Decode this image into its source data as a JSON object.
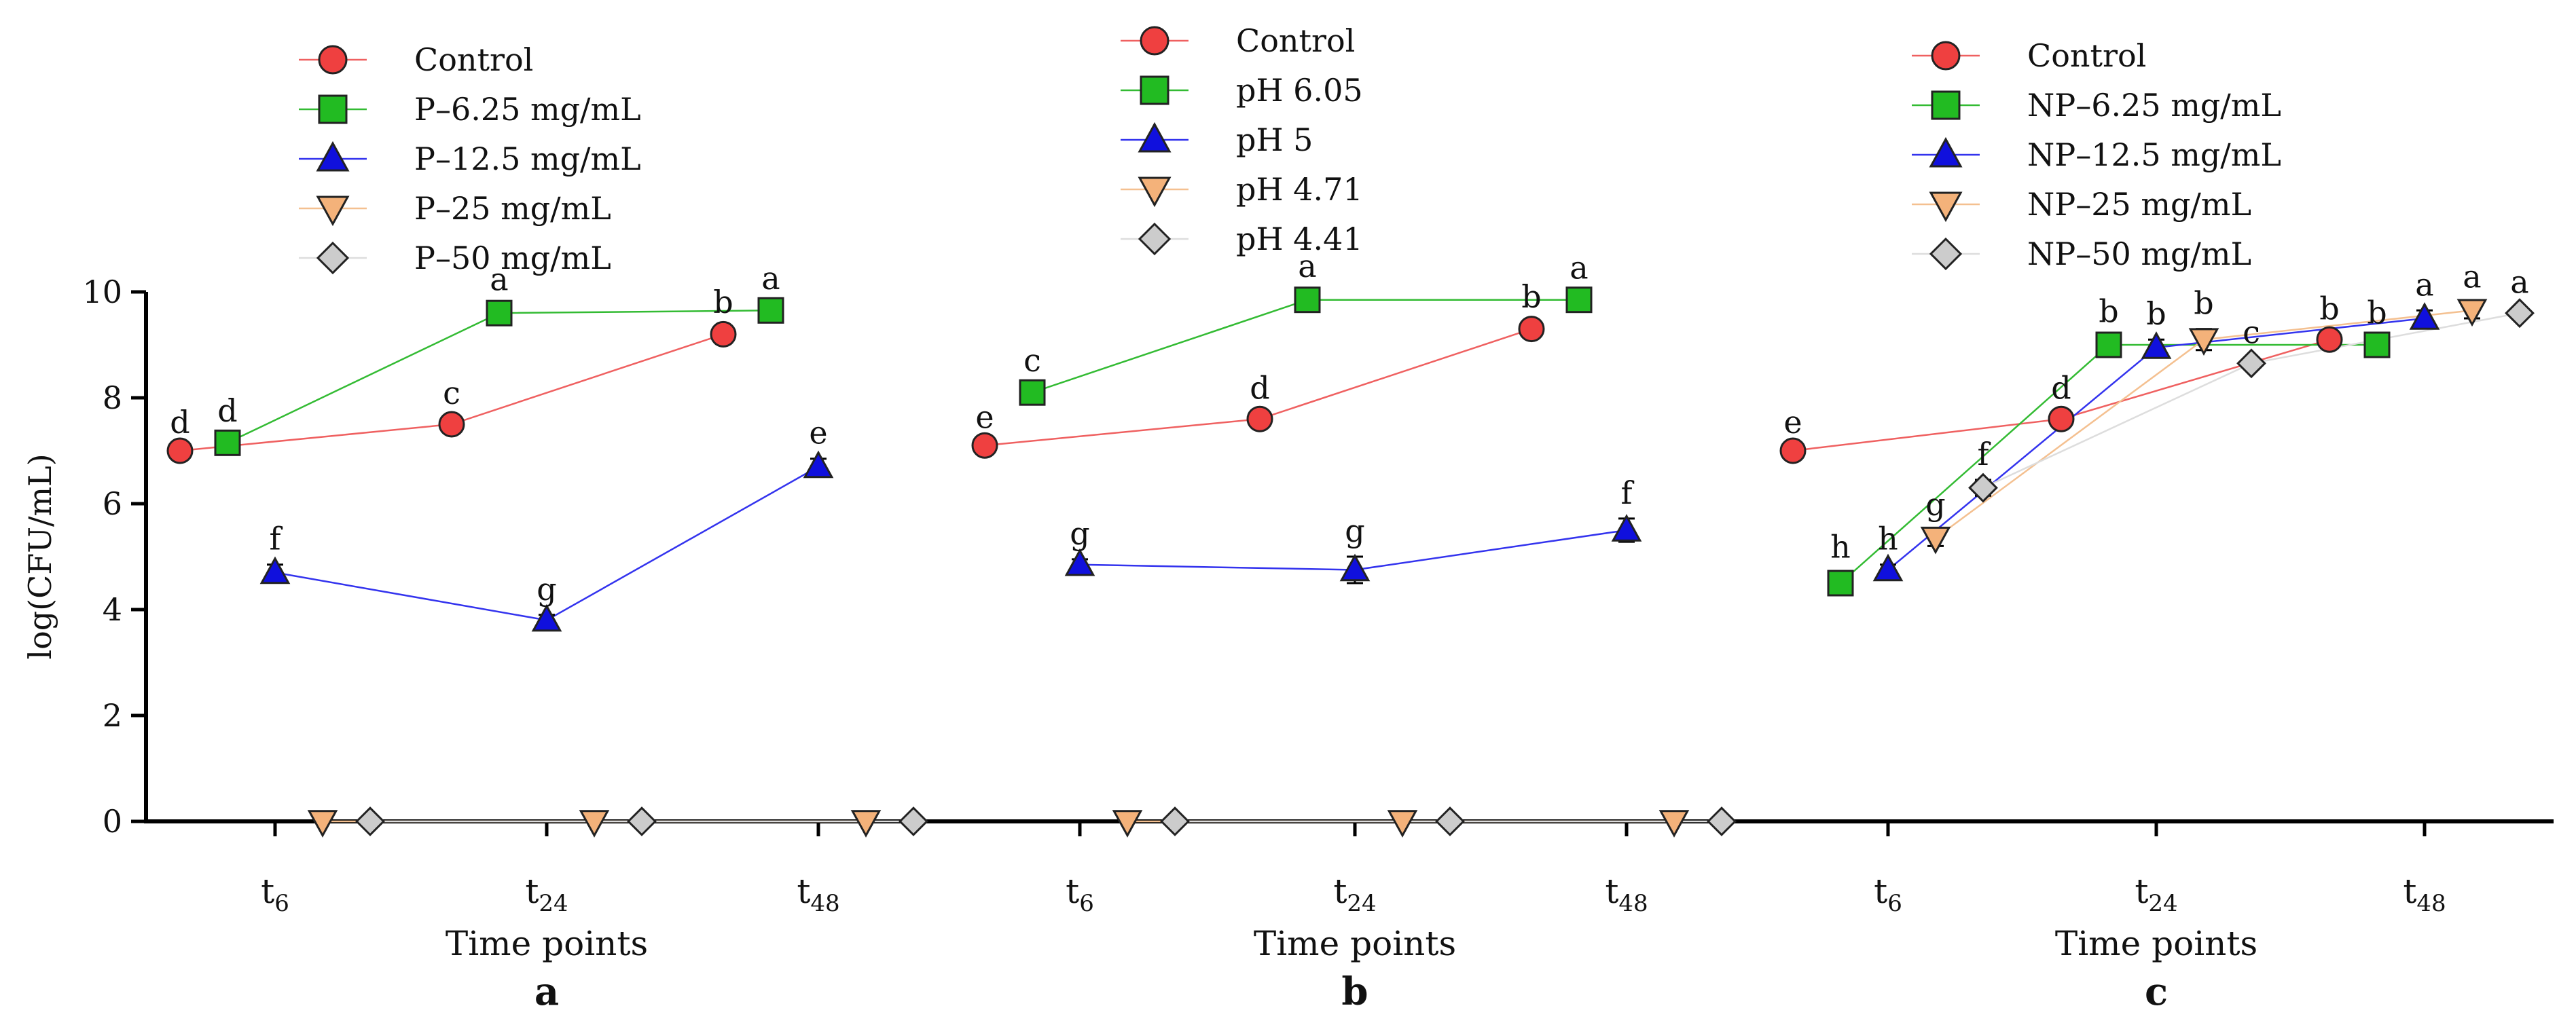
{
  "chart_data": [
    {
      "type": "line",
      "panel_label": "a",
      "xlabel": "Time points",
      "ylabel": "log(CFU/mL)",
      "ylim": [
        0,
        10
      ],
      "yticks": [
        "0",
        "2",
        "4",
        "6",
        "8",
        "10"
      ],
      "categories": [
        {
          "main": "t",
          "sub": "6"
        },
        {
          "main": "t",
          "sub": "24"
        },
        {
          "main": "t",
          "sub": "48"
        }
      ],
      "series": [
        {
          "name": "Control",
          "marker": "circle",
          "color": "#ef4040",
          "line": "#ef6060",
          "values": [
            7.0,
            7.5,
            9.2
          ],
          "err": [
            0.05,
            0.1,
            0.12
          ],
          "letters": [
            "d",
            "c",
            "b"
          ]
        },
        {
          "name": "P–6.25 mg/mL",
          "marker": "square",
          "color": "#22bb22",
          "line": "#33bb33",
          "values": [
            7.15,
            9.6,
            9.65
          ],
          "err": [
            0.12,
            0.15,
            0.12
          ],
          "letters": [
            "d",
            "a",
            "a"
          ]
        },
        {
          "name": "P–12.5 mg/mL",
          "marker": "triangle",
          "color": "#1010dd",
          "line": "#3333ee",
          "values": [
            4.7,
            3.8,
            6.7
          ],
          "err": [
            0.15,
            0.1,
            0.15
          ],
          "letters": [
            "f",
            "g",
            "e"
          ]
        },
        {
          "name": "P–25 mg/mL",
          "marker": "triangle-down",
          "color": "#f4b27a",
          "line": "#f4c090",
          "values": [
            0,
            0,
            0
          ],
          "err": [
            0,
            0,
            0
          ],
          "letters": [
            "",
            "",
            ""
          ]
        },
        {
          "name": "P–50 mg/mL",
          "marker": "diamond",
          "color": "#cccccc",
          "line": "#dddddd",
          "values": [
            0,
            0,
            0
          ],
          "err": [
            0,
            0,
            0
          ],
          "letters": [
            "",
            "",
            ""
          ]
        }
      ]
    },
    {
      "type": "line",
      "panel_label": "b",
      "xlabel": "Time points",
      "ylabel": "",
      "ylim": [
        0,
        10
      ],
      "categories": [
        {
          "main": "t",
          "sub": "6"
        },
        {
          "main": "t",
          "sub": "24"
        },
        {
          "main": "t",
          "sub": "48"
        }
      ],
      "series": [
        {
          "name": "Control",
          "marker": "circle",
          "color": "#ef4040",
          "line": "#ef6060",
          "values": [
            7.1,
            7.6,
            9.3
          ],
          "err": [
            0.05,
            0.1,
            0.12
          ],
          "letters": [
            "e",
            "d",
            "b"
          ]
        },
        {
          "name": "pH 6.05",
          "marker": "square",
          "color": "#22bb22",
          "line": "#33bb33",
          "values": [
            8.1,
            9.85,
            9.85
          ],
          "err": [
            0.12,
            0.15,
            0.12
          ],
          "letters": [
            "c",
            "a",
            "a"
          ]
        },
        {
          "name": "pH 5",
          "marker": "triangle",
          "color": "#1010dd",
          "line": "#3333ee",
          "values": [
            4.85,
            4.75,
            5.5
          ],
          "err": [
            0.1,
            0.25,
            0.22
          ],
          "letters": [
            "g",
            "g",
            "f"
          ]
        },
        {
          "name": "pH 4.71",
          "marker": "triangle-down",
          "color": "#f4b27a",
          "line": "#f4c090",
          "values": [
            0,
            0,
            0
          ],
          "err": [
            0,
            0,
            0
          ],
          "letters": [
            "",
            "",
            ""
          ]
        },
        {
          "name": "pH 4.41",
          "marker": "diamond",
          "color": "#cccccc",
          "line": "#dddddd",
          "values": [
            0,
            0,
            0
          ],
          "err": [
            0,
            0,
            0
          ],
          "letters": [
            "",
            "",
            ""
          ]
        }
      ]
    },
    {
      "type": "line",
      "panel_label": "c",
      "xlabel": "Time points",
      "ylabel": "",
      "ylim": [
        0,
        10
      ],
      "categories": [
        {
          "main": "t",
          "sub": "6"
        },
        {
          "main": "t",
          "sub": "24"
        },
        {
          "main": "t",
          "sub": "48"
        }
      ],
      "series": [
        {
          "name": "Control",
          "marker": "circle",
          "color": "#ef4040",
          "line": "#ef6060",
          "values": [
            7.0,
            7.6,
            9.1
          ],
          "err": [
            0.05,
            0.1,
            0.1
          ],
          "letters": [
            "e",
            "d",
            "b"
          ]
        },
        {
          "name": "NP–6.25 mg/mL",
          "marker": "square",
          "color": "#22bb22",
          "line": "#33bb33",
          "values": [
            4.5,
            9.0,
            9.0
          ],
          "err": [
            0.2,
            0.15,
            0.12
          ],
          "letters": [
            "h",
            "b",
            "b"
          ]
        },
        {
          "name": "NP–12.5 mg/mL",
          "marker": "triangle",
          "color": "#1010dd",
          "line": "#3333ee",
          "values": [
            4.75,
            8.95,
            9.5
          ],
          "err": [
            0.1,
            0.15,
            0.15
          ],
          "letters": [
            "h",
            "b",
            "a"
          ]
        },
        {
          "name": "NP–25 mg/mL",
          "marker": "triangle-down",
          "color": "#f4b27a",
          "line": "#f4c090",
          "values": [
            5.35,
            9.1,
            9.65
          ],
          "err": [
            0.15,
            0.2,
            0.15
          ],
          "letters": [
            "g",
            "b",
            "a"
          ]
        },
        {
          "name": "NP–50 mg/mL",
          "marker": "diamond",
          "color": "#cccccc",
          "line": "#dddddd",
          "values": [
            6.3,
            8.65,
            9.6
          ],
          "err": [
            0.15,
            0.1,
            0.1
          ],
          "letters": [
            "f",
            "c",
            "a"
          ]
        }
      ]
    }
  ]
}
